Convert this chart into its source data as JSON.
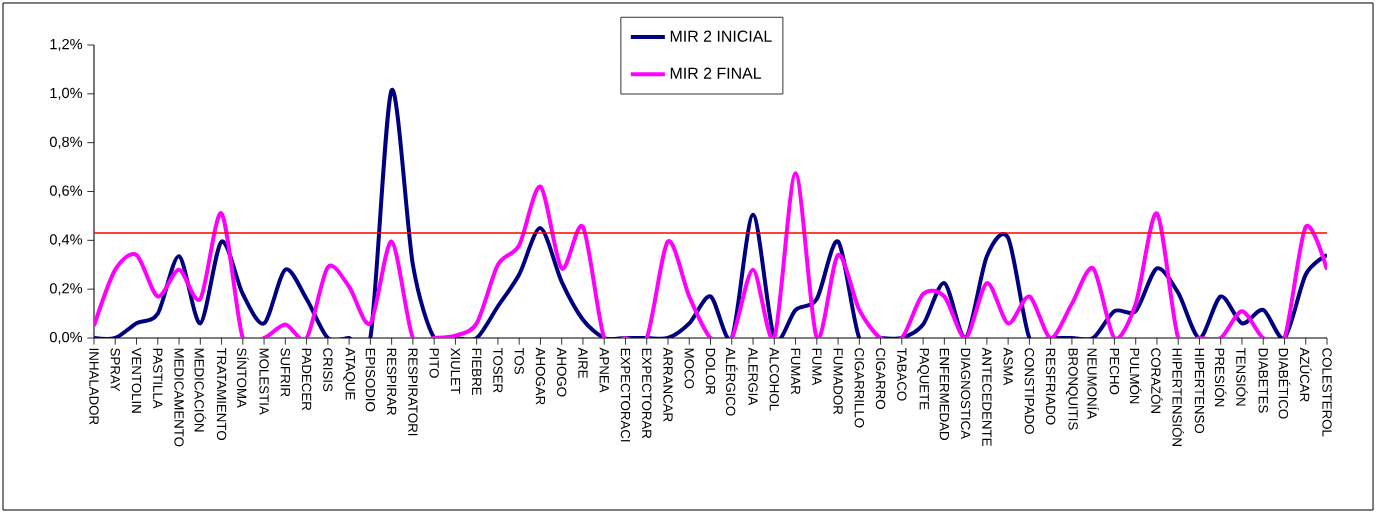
{
  "chart_data": {
    "type": "line",
    "categories": [
      "INHALADOR",
      "SPRAY",
      "VENTOLIN",
      "PASTILLA",
      "MEDICAMENTO",
      "MEDICACIÓN",
      "TRATAMIENTO",
      "SÍNTOMA",
      "MOLESTIA",
      "SUFRIR",
      "PADECER",
      "CRISIS",
      "ATAQUE",
      "EPISODIO",
      "RESPIRAR",
      "RESPIRATORI",
      "PITO",
      "XIULET",
      "FIEBRE",
      "TOSER",
      "TOS",
      "AHOGAR",
      "AHOGO",
      "AIRE",
      "APNEA",
      "EXPECTORACI",
      "EXPECTORAR",
      "ARRANCAR",
      "MOCO",
      "DOLOR",
      "ALÉRGICO",
      "ALERGIA",
      "ALCOHOL",
      "FUMAR",
      "FUMA",
      "FUMADOR",
      "CIGARRILLO",
      "CIGARRO",
      "TABACO",
      "PAQUETE",
      "ENFERMEDAD",
      "DIAGNOSTICA",
      "ANTECEDENTE",
      "ASMA",
      "CONSTIPADO",
      "RESFRIADO",
      "BRONQUITIS",
      "NEUMONÍA",
      "PECHO",
      "PULMÓN",
      "CORAZÓN",
      "HIPERTENSIÓN",
      "HIPERTENSO",
      "PRESIÓN",
      "TENSIÓN",
      "DIABETES",
      "DIABÉTICO",
      "AZÚCAR",
      "COLESTEROL"
    ],
    "series": [
      {
        "name": "MIR 2 INICIAL",
        "color": "#000080",
        "values": [
          0,
          0,
          0.06,
          0.1,
          0.335,
          0.06,
          0.395,
          0.18,
          0.06,
          0.28,
          0.16,
          0,
          0,
          0,
          1.015,
          0.3,
          0,
          0,
          0,
          0.13,
          0.26,
          0.45,
          0.23,
          0.075,
          0,
          0,
          0,
          0,
          0.06,
          0.17,
          0,
          0.505,
          0,
          0.115,
          0.16,
          0.395,
          0,
          0,
          0,
          0.055,
          0.225,
          0,
          0.335,
          0.41,
          0,
          0,
          0,
          0,
          0.11,
          0.11,
          0.285,
          0.185,
          0,
          0.17,
          0.06,
          0.115,
          0,
          0.26,
          0.34
        ]
      },
      {
        "name": "MIR 2 FINAL",
        "color": "#ff00ff",
        "values": [
          0.05,
          0.28,
          0.34,
          0.17,
          0.28,
          0.16,
          0.51,
          0,
          0,
          0.055,
          0,
          0.29,
          0.21,
          0.06,
          0.395,
          0,
          0,
          0.01,
          0.06,
          0.3,
          0.38,
          0.62,
          0.285,
          0.455,
          0,
          0,
          0,
          0.395,
          0.17,
          0,
          0,
          0.28,
          0,
          0.675,
          0,
          0.34,
          0.115,
          0,
          0,
          0.18,
          0.17,
          0,
          0.225,
          0.06,
          0.17,
          0,
          0.14,
          0.285,
          0,
          0.14,
          0.51,
          0,
          0,
          0,
          0.11,
          0,
          0,
          0.455,
          0.28
        ]
      }
    ],
    "ylim": [
      0,
      1.2
    ],
    "yticks": [
      {
        "value": 0,
        "label": "0,0%"
      },
      {
        "value": 0.2,
        "label": "0,2%"
      },
      {
        "value": 0.4,
        "label": "0,4%"
      },
      {
        "value": 0.6,
        "label": "0,6%"
      },
      {
        "value": 0.8,
        "label": "0,8%"
      },
      {
        "value": 1.0,
        "label": "1,0%"
      },
      {
        "value": 1.2,
        "label": "1,2%"
      }
    ],
    "ref_lines": [
      {
        "axis": "y",
        "value": 0.43,
        "color": "#ff0000"
      }
    ],
    "legend": "top"
  }
}
